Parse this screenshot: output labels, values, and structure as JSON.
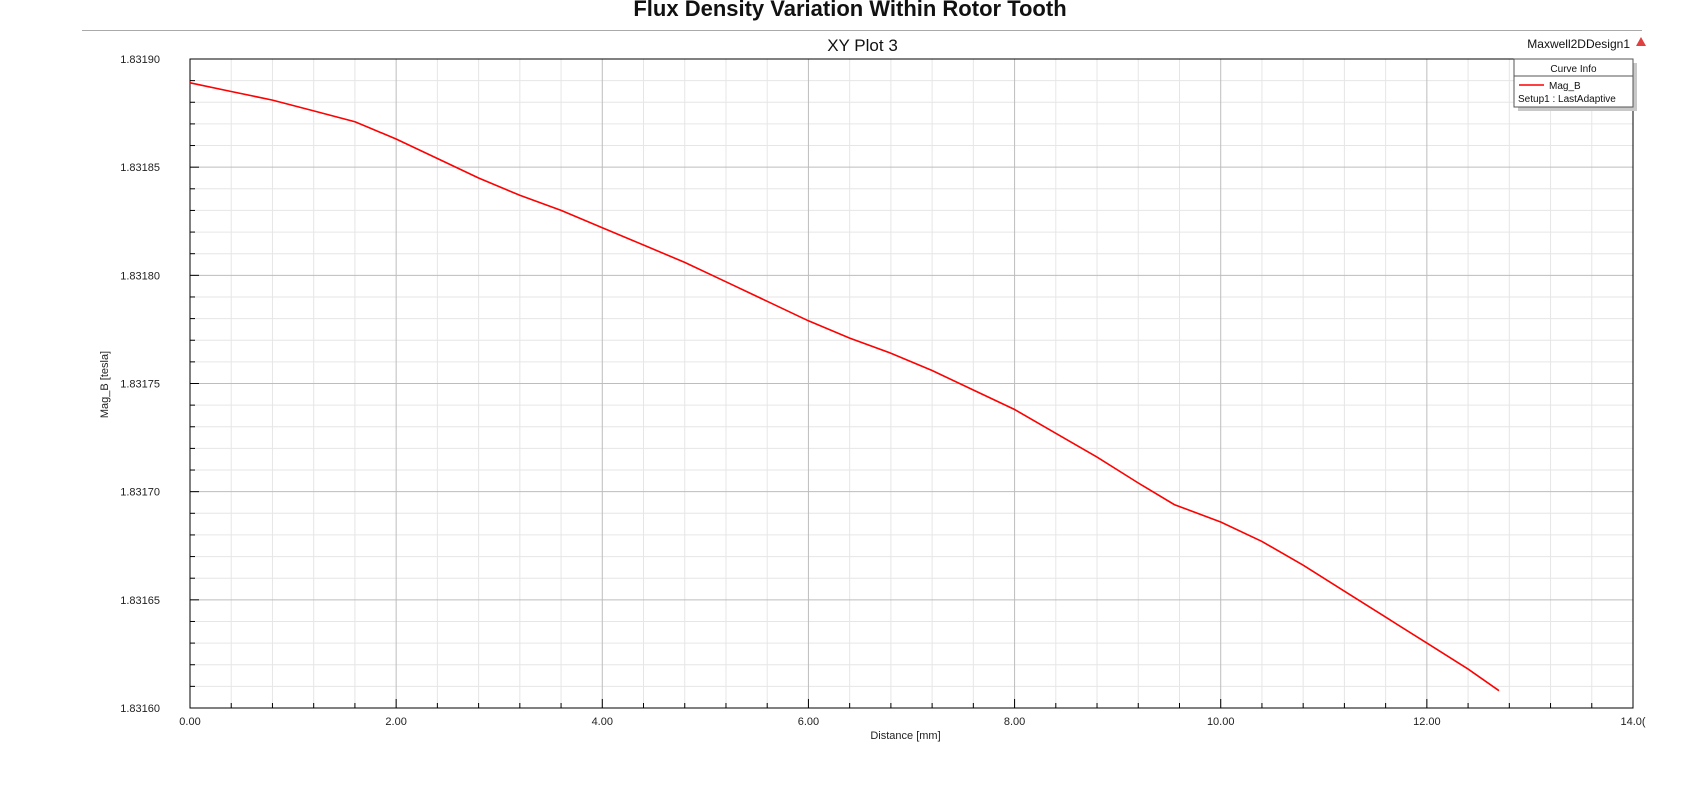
{
  "figure_title": "Flux Density Variation Within Rotor Tooth",
  "design_name": "Maxwell2DDesign1",
  "legend": {
    "header": "Curve Info",
    "entries": [
      {
        "name": "Mag_B",
        "subtitle": "Setup1 : LastAdaptive",
        "color": "#ff0000"
      }
    ]
  },
  "chart_data": {
    "type": "line",
    "title": "XY Plot 3",
    "xlabel": "Distance [mm]",
    "ylabel": "Mag_B [tesla]",
    "xlim": [
      0,
      14
    ],
    "ylim": [
      1.8316,
      1.8319
    ],
    "x_ticks": [
      0,
      2,
      4,
      6,
      8,
      10,
      12,
      14
    ],
    "x_tick_labels": [
      "0.00",
      "2.00",
      "4.00",
      "6.00",
      "8.00",
      "10.00",
      "12.00",
      "14.0("
    ],
    "y_ticks": [
      1.8316,
      1.83165,
      1.8317,
      1.83175,
      1.8318,
      1.83185,
      1.8319
    ],
    "y_tick_labels": [
      "1.83160",
      "1.83165",
      "1.83170",
      "1.83175",
      "1.83180",
      "1.83185",
      "1.83190"
    ],
    "grid": true,
    "legend_position": "top-right",
    "series": [
      {
        "name": "Mag_B",
        "color": "#ff0000",
        "x": [
          0,
          0.4,
          0.8,
          1.2,
          1.6,
          2.0,
          2.4,
          2.8,
          3.2,
          3.6,
          4.0,
          4.4,
          4.8,
          5.2,
          5.6,
          6.0,
          6.4,
          6.8,
          7.2,
          7.6,
          8.0,
          8.4,
          8.8,
          9.2,
          9.55,
          10.0,
          10.4,
          10.8,
          11.2,
          11.6,
          12.0,
          12.4,
          12.7
        ],
        "y": [
          1.831889,
          1.831885,
          1.831881,
          1.831876,
          1.831871,
          1.831863,
          1.831854,
          1.831845,
          1.831837,
          1.83183,
          1.831822,
          1.831814,
          1.831806,
          1.831797,
          1.831788,
          1.831779,
          1.831771,
          1.831764,
          1.831756,
          1.831747,
          1.831738,
          1.831727,
          1.831716,
          1.831704,
          1.831694,
          1.831686,
          1.831677,
          1.831666,
          1.831654,
          1.831642,
          1.83163,
          1.831618,
          1.831608
        ]
      }
    ]
  }
}
